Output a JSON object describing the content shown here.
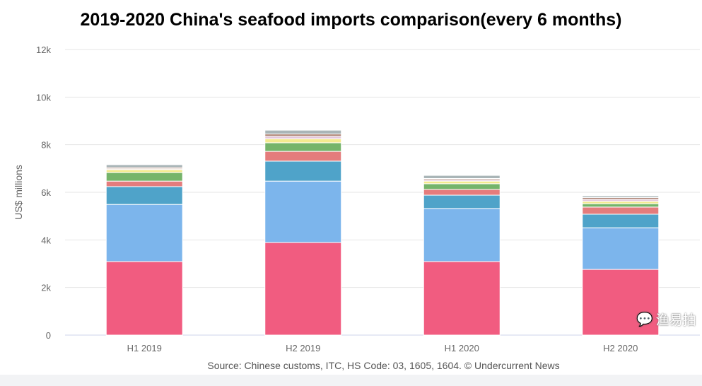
{
  "chart_data": {
    "type": "stacked-bar",
    "title": "2019-2020 China's seafood imports comparison(every 6 months)",
    "ylabel": "US$ millions",
    "xlabel": "",
    "categories": [
      "H1 2019",
      "H2 2019",
      "H1 2020",
      "H2 2020"
    ],
    "ylim": [
      0,
      12000
    ],
    "yticks": [
      0,
      2000,
      4000,
      6000,
      8000,
      10000,
      12000
    ],
    "ytick_labels": [
      "0",
      "2k",
      "4k",
      "6k",
      "8k",
      "10k",
      "12k"
    ],
    "grid": true,
    "legend": "none",
    "series": [
      {
        "color": "#f15c80",
        "values": [
          3090,
          3890,
          3090,
          2760
        ]
      },
      {
        "color": "#7cb5ec",
        "values": [
          2400,
          2580,
          2230,
          1750
        ]
      },
      {
        "color": "#4fa3c9",
        "values": [
          750,
          840,
          560,
          570
        ]
      },
      {
        "color": "#e47c7c",
        "values": [
          230,
          410,
          240,
          300
        ]
      },
      {
        "color": "#75b46a",
        "values": [
          360,
          360,
          240,
          140
        ]
      },
      {
        "color": "#f3ea8f",
        "values": [
          120,
          170,
          110,
          100
        ]
      },
      {
        "color": "#e4c6dc",
        "values": [
          40,
          100,
          60,
          80
        ]
      },
      {
        "color": "#b28a7c",
        "values": [
          50,
          100,
          50,
          80
        ]
      },
      {
        "color": "#a9b5b7",
        "values": [
          120,
          160,
          130,
          70
        ]
      }
    ],
    "source": "Source: Chinese customs, ITC, HS Code: 03, 1605, 1604. © Undercurrent News"
  },
  "watermark": "渔易拍"
}
